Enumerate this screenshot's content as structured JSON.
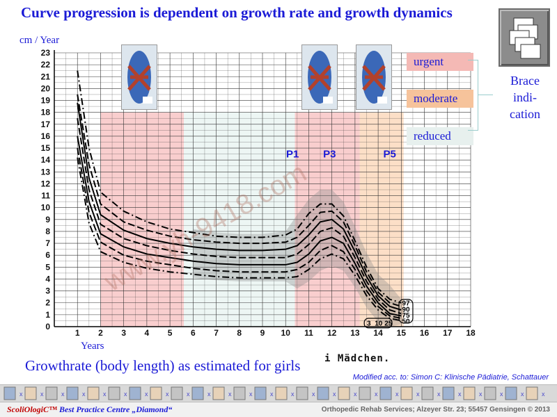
{
  "title": "Curve progression is dependent on growth rate and growth dynamics",
  "subtitle": "Growthrate (body length) as estimated for girls",
  "maedchen_label": "i Mädchen.",
  "credit": "Modified acc. to: Simon C: Klinische Pädiatrie, Schattauer",
  "brace_indication": "Brace indi- cation",
  "indicators": [
    {
      "label": "urgent",
      "color": "#f4b9b5"
    },
    {
      "label": "moderate",
      "color": "#f6c39b"
    },
    {
      "label": "reduced",
      "color": "#e7f0ee"
    }
  ],
  "footer": {
    "brand": "ScoliOlogiC™",
    "brand_suffix": "Best Practice Centre „Diamond“",
    "address": "Orthopedic Rehab Services; Alzeyer Str. 23; 55457 Gensingen © 2013"
  },
  "watermark": "www.yh-9418.com",
  "icons": [
    "presentation-stack-icon",
    "brace-photo-icon",
    "spine-strip-icon"
  ],
  "chart_data": {
    "type": "line",
    "xlabel": "Years",
    "ylabel": "cm / Year",
    "xlim": [
      0,
      18
    ],
    "ylim": [
      0,
      23
    ],
    "x_ticks": [
      1,
      2,
      3,
      4,
      5,
      6,
      7,
      8,
      9,
      10,
      11,
      12,
      13,
      14,
      15,
      16,
      17,
      18
    ],
    "y_ticks": [
      0,
      1,
      2,
      3,
      4,
      5,
      6,
      7,
      8,
      9,
      10,
      11,
      12,
      13,
      14,
      15,
      16,
      17,
      18,
      19,
      20,
      21,
      22,
      23
    ],
    "grid": true,
    "phase_labels": [
      {
        "label": "P1",
        "x": 10.3
      },
      {
        "label": "P3",
        "x": 11.9
      },
      {
        "label": "P5",
        "x": 14.5
      }
    ],
    "shaded_regions": [
      {
        "x": [
          2,
          5.6
        ],
        "color": "#f8c6c6"
      },
      {
        "x": [
          5.6,
          10.4
        ],
        "color": "#eaf4f2"
      },
      {
        "x": [
          10.4,
          13.2
        ],
        "color": "#f8c6c6"
      },
      {
        "x": [
          13.2,
          15.1
        ],
        "color": "#fbd9bd"
      }
    ],
    "percentile_labels_right": [
      "97",
      "90",
      "75",
      "50"
    ],
    "percentile_labels_bottom": [
      "3",
      "10",
      "25"
    ],
    "series": [
      {
        "name": "97",
        "x": [
          1,
          1.5,
          2,
          3,
          4,
          5,
          6,
          7,
          8,
          9,
          10,
          10.5,
          11,
          11.5,
          12,
          12.5,
          13,
          13.5,
          14,
          14.5,
          15
        ],
        "y": [
          21.5,
          15,
          11.3,
          9.7,
          8.8,
          8.2,
          7.9,
          7.6,
          7.5,
          7.5,
          7.7,
          8.2,
          9.5,
          10.3,
          10.3,
          9.3,
          7.2,
          5,
          3.2,
          2.3,
          2.0
        ]
      },
      {
        "name": "90",
        "x": [
          1,
          1.5,
          2,
          3,
          4,
          5,
          6,
          7,
          8,
          9,
          10,
          10.5,
          11,
          11.5,
          12,
          12.5,
          13,
          13.5,
          14,
          14.5,
          15
        ],
        "y": [
          19.5,
          13.6,
          10.3,
          8.8,
          8.1,
          7.6,
          7.3,
          7.1,
          7.0,
          7.0,
          7.1,
          7.5,
          8.5,
          9.6,
          9.7,
          8.8,
          6.8,
          4.6,
          2.9,
          2.0,
          1.7
        ]
      },
      {
        "name": "75",
        "x": [
          1,
          1.5,
          2,
          3,
          4,
          5,
          6,
          7,
          8,
          9,
          10,
          10.5,
          11,
          11.5,
          12,
          12.5,
          13,
          13.5,
          14,
          14.5,
          15
        ],
        "y": [
          18.8,
          12.5,
          9.4,
          8.1,
          7.4,
          7.0,
          6.7,
          6.5,
          6.4,
          6.4,
          6.5,
          6.8,
          7.7,
          8.8,
          9.0,
          8.2,
          6.3,
          4.2,
          2.6,
          1.7,
          1.4
        ]
      },
      {
        "name": "50",
        "x": [
          1,
          1.5,
          2,
          3,
          4,
          5,
          6,
          7,
          8,
          9,
          10,
          10.5,
          11,
          11.5,
          12,
          12.5,
          13,
          13.5,
          14,
          14.5,
          15
        ],
        "y": [
          17.5,
          11.5,
          8.6,
          7.4,
          6.8,
          6.4,
          6.1,
          5.9,
          5.8,
          5.8,
          5.8,
          6.1,
          6.9,
          8.0,
          8.3,
          7.6,
          5.8,
          3.8,
          2.3,
          1.4,
          1.1
        ]
      },
      {
        "name": "25",
        "x": [
          1,
          1.5,
          2,
          3,
          4,
          5,
          6,
          7,
          8,
          9,
          10,
          10.5,
          11,
          11.5,
          12,
          12.5,
          13,
          13.5,
          14,
          14.5,
          15
        ],
        "y": [
          16.0,
          10.5,
          7.8,
          6.7,
          6.1,
          5.8,
          5.5,
          5.3,
          5.2,
          5.2,
          5.2,
          5.4,
          6.1,
          7.2,
          7.5,
          7.0,
          5.3,
          3.4,
          2.0,
          1.1,
          0.9
        ]
      },
      {
        "name": "10",
        "x": [
          1,
          1.5,
          2,
          3,
          4,
          5,
          6,
          7,
          8,
          9,
          10,
          10.5,
          11,
          11.5,
          12,
          12.5,
          13,
          13.5,
          14,
          14.5,
          15
        ],
        "y": [
          15.0,
          9.6,
          7.1,
          6.0,
          5.5,
          5.2,
          4.9,
          4.7,
          4.6,
          4.6,
          4.6,
          4.8,
          5.4,
          6.4,
          6.8,
          6.3,
          4.8,
          3.0,
          1.7,
          0.9,
          0.7
        ]
      },
      {
        "name": "3",
        "x": [
          1,
          1.5,
          2,
          3,
          4,
          5,
          6,
          7,
          8,
          9,
          10,
          10.5,
          11,
          11.5,
          12,
          12.5,
          13,
          13.5,
          14,
          14.5,
          15
        ],
        "y": [
          14.2,
          8.7,
          6.3,
          5.4,
          4.9,
          4.6,
          4.4,
          4.2,
          4.1,
          4.1,
          4.1,
          4.2,
          4.8,
          5.7,
          6.1,
          5.7,
          4.3,
          2.6,
          1.4,
          0.7,
          0.5
        ]
      }
    ]
  }
}
